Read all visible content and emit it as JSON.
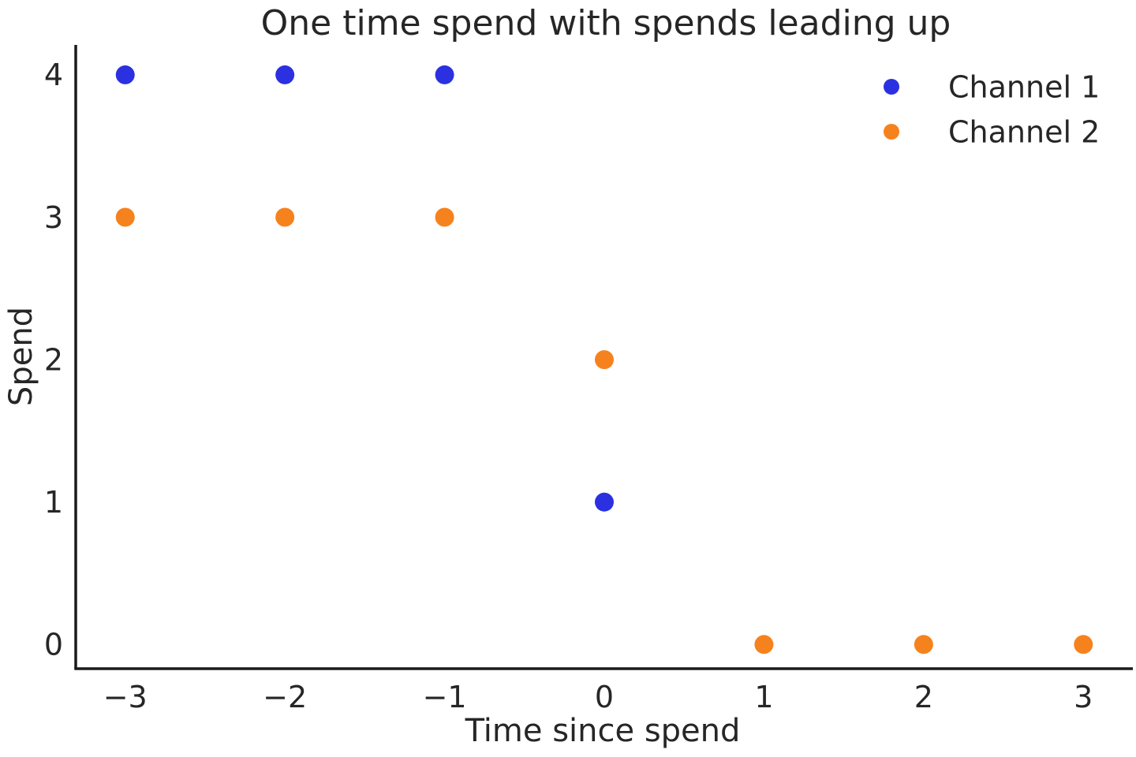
{
  "figure": {
    "background": "#ffffff"
  },
  "colors": {
    "channel1": "#2b31e0",
    "channel2": "#f6821e",
    "text": "#262626",
    "spine": "#1a1a1a"
  },
  "chart_data": {
    "type": "scatter",
    "title": "One time spend with spends leading up",
    "xlabel": "Time since spend",
    "ylabel": "Spend",
    "xlim": [
      -3.31,
      3.31
    ],
    "ylim": [
      -0.17,
      4.21
    ],
    "xticks": [
      -3,
      -2,
      -1,
      0,
      1,
      2,
      3
    ],
    "yticks": [
      0,
      1,
      2,
      3,
      4
    ],
    "grid": false,
    "legend_position": "upper right",
    "marker": "circle",
    "series": [
      {
        "name": "Channel 1",
        "color": "#2b31e0",
        "points": [
          [
            -3,
            4
          ],
          [
            -2,
            4
          ],
          [
            -1,
            4
          ],
          [
            0,
            1
          ]
        ]
      },
      {
        "name": "Channel 2",
        "color": "#f6821e",
        "points": [
          [
            -3,
            3
          ],
          [
            -2,
            3
          ],
          [
            -1,
            3
          ],
          [
            0,
            2
          ],
          [
            1,
            0
          ],
          [
            2,
            0
          ],
          [
            3,
            0
          ]
        ]
      }
    ]
  }
}
